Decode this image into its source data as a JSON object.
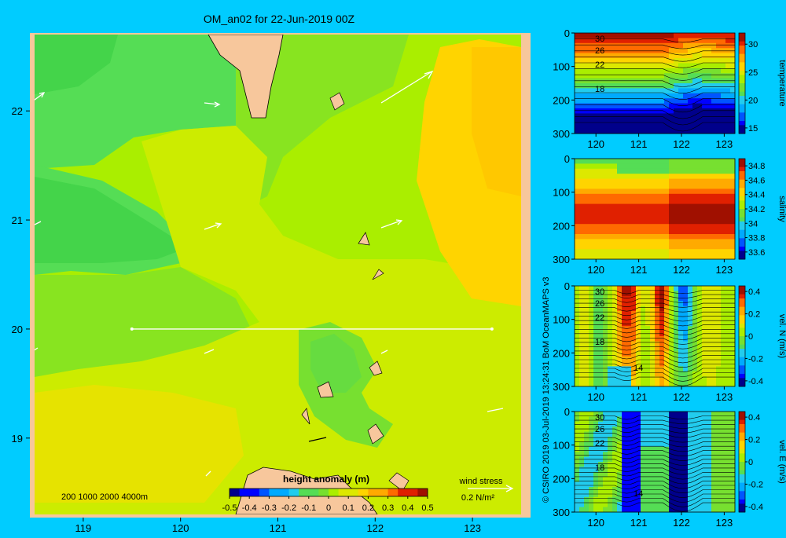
{
  "figure": {
    "title": "OM_an02 for 22-Jun-2019 00Z",
    "credit": "© CSIRO 2019   03-Jul-2019 13:24:31  BoM OceanMAPS v3"
  },
  "colors": {
    "background": "#00ccff",
    "land": "#f7c79c",
    "colormap": [
      "#00008b",
      "#0000ff",
      "#0055ff",
      "#00aaff",
      "#22ccee",
      "#55dd55",
      "#77e030",
      "#aaee00",
      "#dde800",
      "#ffd400",
      "#ffaa00",
      "#ff6a00",
      "#e02000",
      "#a01000"
    ]
  },
  "map": {
    "colorbar_title": "height anomaly (m)",
    "colorbar_ticks": [
      "-0.5",
      "-0.4",
      "-0.3",
      "-0.2",
      "-0.1",
      "0",
      "0.1",
      "0.2",
      "0.3",
      "0.4",
      "0.5"
    ],
    "depth_label": "200  1000  2000  4000m",
    "wind_label": "wind stress",
    "wind_scale": "0.2 N/m²",
    "section_line_lat": 20,
    "section_line_lon": [
      119.5,
      123.2
    ]
  },
  "chart_data": [
    {
      "type": "heatmap",
      "title": "OM_an02 for 22-Jun-2019 00Z",
      "variable": "height anomaly (m)",
      "x": "longitude",
      "y": "latitude",
      "xlim": [
        118.5,
        123.5
      ],
      "ylim": [
        18.3,
        22.7
      ],
      "xticks": [
        119,
        120,
        121,
        122,
        123
      ],
      "yticks": [
        19,
        20,
        21,
        22
      ],
      "clim": [
        -0.5,
        0.5
      ],
      "approx_field": [
        {
          "region": "northwest",
          "value": 0.1
        },
        {
          "region": "west lobe near 21N 119.5E",
          "value": 0.05
        },
        {
          "region": "central band",
          "value": 0.2
        },
        {
          "region": "east near 122.8E",
          "value": 0.3
        },
        {
          "region": "south-central around 121.5E 19.5N",
          "value": 0.1
        },
        {
          "region": "southwest",
          "value": 0.25
        }
      ]
    },
    {
      "type": "heatmap",
      "title": "",
      "colorbar_label": "temperature",
      "xticks": [
        120,
        121,
        122,
        123
      ],
      "yticks": [
        0,
        100,
        200,
        300
      ],
      "colorbar_ticks": [
        15,
        20,
        25,
        30
      ],
      "clim": [
        14,
        32
      ],
      "contour_labels": [
        "30",
        "26",
        "22",
        "18"
      ]
    },
    {
      "type": "heatmap",
      "title": "",
      "colorbar_label": "salinity",
      "xticks": [
        120,
        121,
        122,
        123
      ],
      "yticks": [
        0,
        100,
        200,
        300
      ],
      "colorbar_ticks": [
        33.6,
        33.8,
        34,
        34.2,
        34.4,
        34.6,
        34.8
      ],
      "clim": [
        33.5,
        34.9
      ]
    },
    {
      "type": "heatmap",
      "title": "",
      "colorbar_label": "vel. N (m/s)",
      "xticks": [
        120,
        121,
        122,
        123
      ],
      "yticks": [
        0,
        100,
        200,
        300
      ],
      "colorbar_ticks": [
        -0.4,
        -0.2,
        0,
        0.2,
        0.4
      ],
      "clim": [
        -0.45,
        0.45
      ],
      "contour_labels": [
        "30",
        "26",
        "22",
        "18",
        "14"
      ]
    },
    {
      "type": "heatmap",
      "title": "",
      "colorbar_label": "vel. E (m/s)",
      "xticks": [
        120,
        121,
        122,
        123
      ],
      "yticks": [
        0,
        100,
        200,
        300
      ],
      "colorbar_ticks": [
        -0.4,
        -0.2,
        0,
        0.2,
        0.4
      ],
      "clim": [
        -0.45,
        0.45
      ],
      "contour_labels": [
        "30",
        "26",
        "22",
        "18",
        "14"
      ]
    }
  ]
}
